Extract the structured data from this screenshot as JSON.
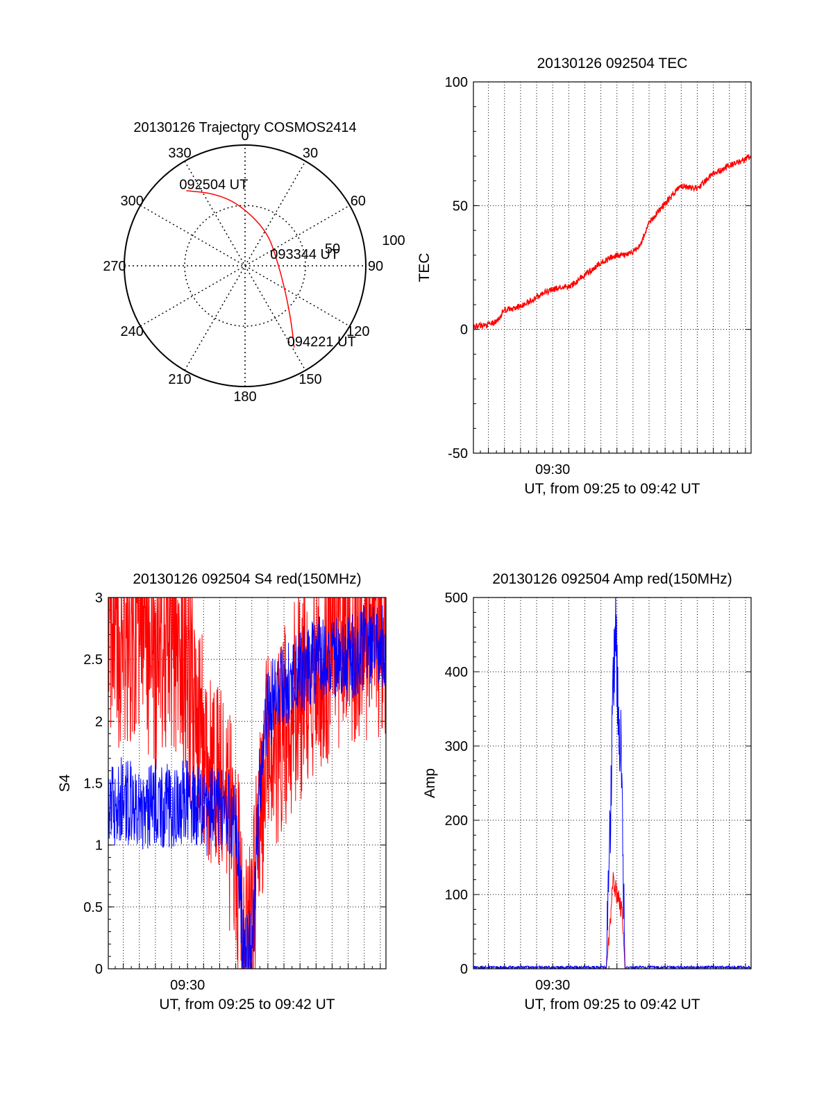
{
  "colors": {
    "red": "#ff0000",
    "blue": "#0000ff",
    "axis": "#000000",
    "grid": "#000000"
  },
  "chart_data": [
    {
      "type": "polar",
      "title": "20130126 Trajectory COSMOS2414",
      "angle_labels": [
        "0",
        "30",
        "60",
        "90",
        "120",
        "150",
        "180",
        "210",
        "240",
        "270",
        "300",
        "330"
      ],
      "radius_labels": [
        "50",
        "100"
      ],
      "rlim": [
        0,
        100
      ],
      "grid": true,
      "series": [
        {
          "color": "red",
          "points": [
            {
              "az": 322,
              "r": 79
            },
            {
              "az": 337,
              "r": 65
            },
            {
              "az": 355,
              "r": 51
            },
            {
              "az": 32,
              "r": 34
            },
            {
              "az": 80,
              "r": 27
            },
            {
              "az": 123,
              "r": 40
            },
            {
              "az": 141,
              "r": 61
            },
            {
              "az": 149,
              "r": 79
            }
          ]
        }
      ],
      "annotations": [
        {
          "text": "092504 UT",
          "az": 322,
          "r": 79
        },
        {
          "text": "093344 UT",
          "az": 80,
          "r": 27
        },
        {
          "text": "094221 UT",
          "az": 149,
          "r": 79
        }
      ]
    },
    {
      "type": "line",
      "title": "20130126 092504 TEC",
      "xlabel": "UT, from 09:25 to 09:42 UT",
      "ylabel": "TEC",
      "xlim": [
        "09:25:04",
        "09:42:21"
      ],
      "ylim": [
        -50,
        100
      ],
      "yticks": [
        "100",
        "50",
        "0",
        "-50"
      ],
      "xticks": [
        "09:30"
      ],
      "grid": true,
      "series": [
        {
          "color": "red",
          "x": [
            "09:25:04",
            "09:26:00",
            "09:26:30",
            "09:27:00",
            "09:27:30",
            "09:28:30",
            "09:29:30",
            "09:30:30",
            "09:31:00",
            "09:32:00",
            "09:33:00",
            "09:34:00",
            "09:34:30",
            "09:35:00",
            "09:35:30",
            "09:36:00",
            "09:37:00",
            "09:38:00",
            "09:39:00",
            "09:40:00",
            "09:41:00",
            "09:42:21"
          ],
          "values": [
            1,
            2,
            3,
            8,
            8,
            11,
            15,
            17,
            17,
            22,
            27,
            30,
            30,
            31,
            35,
            43,
            51,
            58,
            57,
            63,
            66,
            70
          ]
        }
      ]
    },
    {
      "type": "line",
      "title": "20130126 092504 S4 red(150MHz)",
      "xlabel": "UT, from 09:25 to 09:42 UT",
      "ylabel": "S4",
      "xlim": [
        "09:25:04",
        "09:42:21"
      ],
      "ylim": [
        0,
        3
      ],
      "yticks": [
        "3",
        "2.5",
        "2",
        "1.5",
        "1",
        "0.5",
        "0"
      ],
      "xticks": [
        "09:30"
      ],
      "grid": true,
      "series": [
        {
          "color": "red",
          "x": [
            "09:25:04",
            "09:26:00",
            "09:27:00",
            "09:28:00",
            "09:29:00",
            "09:30:00",
            "09:31:00",
            "09:32:00",
            "09:33:00",
            "09:33:30",
            "09:34:00",
            "09:34:30",
            "09:35:00",
            "09:36:00",
            "09:37:00",
            "09:38:00",
            "09:39:00",
            "09:40:00",
            "09:41:00",
            "09:42:21"
          ],
          "values": [
            2.9,
            2.5,
            2.8,
            2.4,
            2.7,
            2.3,
            1.8,
            1.5,
            1.0,
            0.1,
            0.1,
            1.3,
            1.7,
            2.0,
            2.2,
            2.4,
            2.6,
            2.7,
            2.7,
            2.8
          ]
        },
        {
          "color": "blue",
          "x": [
            "09:25:04",
            "09:26:00",
            "09:27:00",
            "09:28:00",
            "09:29:00",
            "09:30:00",
            "09:31:00",
            "09:32:00",
            "09:33:00",
            "09:33:30",
            "09:34:00",
            "09:34:30",
            "09:35:00",
            "09:36:00",
            "09:37:00",
            "09:38:00",
            "09:39:00",
            "09:40:00",
            "09:41:00",
            "09:42:21"
          ],
          "values": [
            1.3,
            1.4,
            1.25,
            1.35,
            1.3,
            1.35,
            1.25,
            1.3,
            1.2,
            0.13,
            0.12,
            1.5,
            2.1,
            2.3,
            2.4,
            2.5,
            2.5,
            2.5,
            2.6,
            2.6
          ]
        }
      ]
    },
    {
      "type": "line",
      "title": "20130126 092504 Amp red(150MHz)",
      "xlabel": "UT, from 09:25 to 09:42 UT",
      "ylabel": "Amp",
      "xlim": [
        "09:25:04",
        "09:42:21"
      ],
      "ylim": [
        0,
        500
      ],
      "yticks": [
        "500",
        "400",
        "300",
        "200",
        "100",
        "0"
      ],
      "xticks": [
        "09:30"
      ],
      "grid": true,
      "series": [
        {
          "color": "red",
          "x": [
            "09:25:04",
            "09:33:20",
            "09:33:35",
            "09:33:45",
            "09:34:00",
            "09:34:10",
            "09:34:20",
            "09:34:30",
            "09:42:21"
          ],
          "values": [
            0,
            0,
            60,
            120,
            100,
            90,
            75,
            0,
            0
          ]
        },
        {
          "color": "blue",
          "x": [
            "09:25:04",
            "09:33:20",
            "09:33:35",
            "09:33:45",
            "09:33:55",
            "09:34:05",
            "09:34:15",
            "09:34:30",
            "09:42:21"
          ],
          "values": [
            2,
            2,
            200,
            360,
            475,
            330,
            300,
            2,
            2
          ]
        }
      ]
    }
  ]
}
